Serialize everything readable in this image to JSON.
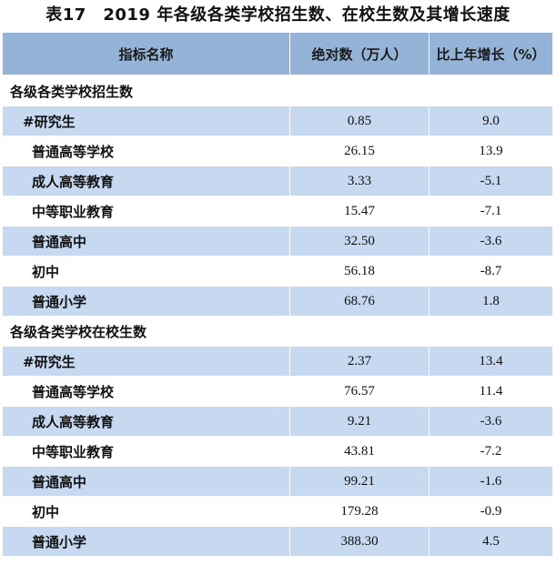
{
  "title": "表17　2019 年各级各类学校招生数、在校生数及其增长速度",
  "header": {
    "col1": "指标名称",
    "col2": "绝对数（万人）",
    "col3": "比上年增长（%）"
  },
  "sections": [
    {
      "label": "各级各类学校招生数",
      "rows": [
        {
          "name": "#研究生",
          "value": "0.85",
          "growth": "9.0"
        },
        {
          "name": "普通高等学校",
          "value": "26.15",
          "growth": "13.9"
        },
        {
          "name": "成人高等教育",
          "value": "3.33",
          "growth": "-5.1"
        },
        {
          "name": "中等职业教育",
          "value": "15.47",
          "growth": "-7.1"
        },
        {
          "name": "普通高中",
          "value": "32.50",
          "growth": "-3.6"
        },
        {
          "name": "初中",
          "value": "56.18",
          "growth": "-8.7"
        },
        {
          "name": "普通小学",
          "value": "68.76",
          "growth": "1.8"
        }
      ]
    },
    {
      "label": "各级各类学校在校生数",
      "rows": [
        {
          "name": "#研究生",
          "value": "2.37",
          "growth": "13.4"
        },
        {
          "name": "普通高等学校",
          "value": "76.57",
          "growth": "11.4"
        },
        {
          "name": "成人高等教育",
          "value": "9.21",
          "growth": "-3.6"
        },
        {
          "name": "中等职业教育",
          "value": "43.81",
          "growth": "-7.2"
        },
        {
          "name": "普通高中",
          "value": "99.21",
          "growth": "-1.6"
        },
        {
          "name": "初中",
          "value": "179.28",
          "growth": "-0.9"
        },
        {
          "name": "普通小学",
          "value": "388.30",
          "growth": "4.5"
        }
      ]
    }
  ],
  "colors": {
    "header_bg": "#95b3d7",
    "shaded_row_bg": "#c6d9f1",
    "plain_row_bg": "#ffffff"
  }
}
